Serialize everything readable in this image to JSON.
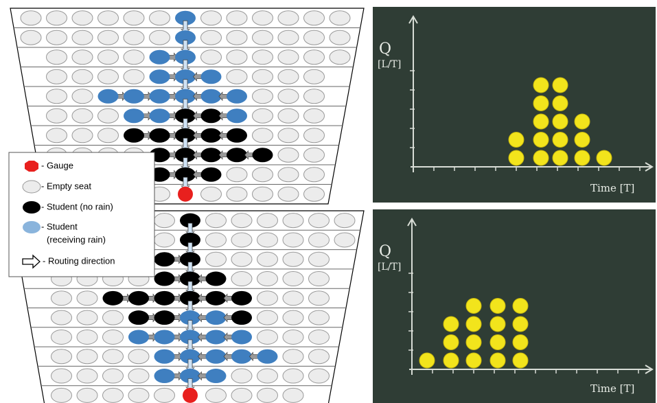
{
  "legend": {
    "items": [
      "- Gauge",
      "- Empty seat",
      "- Student (no rain)",
      "- Student",
      "(receiving rain)",
      "- Routing direction"
    ]
  },
  "boards": [
    {
      "y_label": "Q",
      "y_unit": "[L/T]",
      "x_label": "Time [T]",
      "ball_counts": [
        2,
        5,
        5,
        3,
        1
      ]
    },
    {
      "y_label": "Q",
      "y_unit": "[L/T]",
      "x_label": "Time [T]",
      "ball_counts": [
        1,
        3,
        4,
        4,
        4
      ]
    }
  ]
}
